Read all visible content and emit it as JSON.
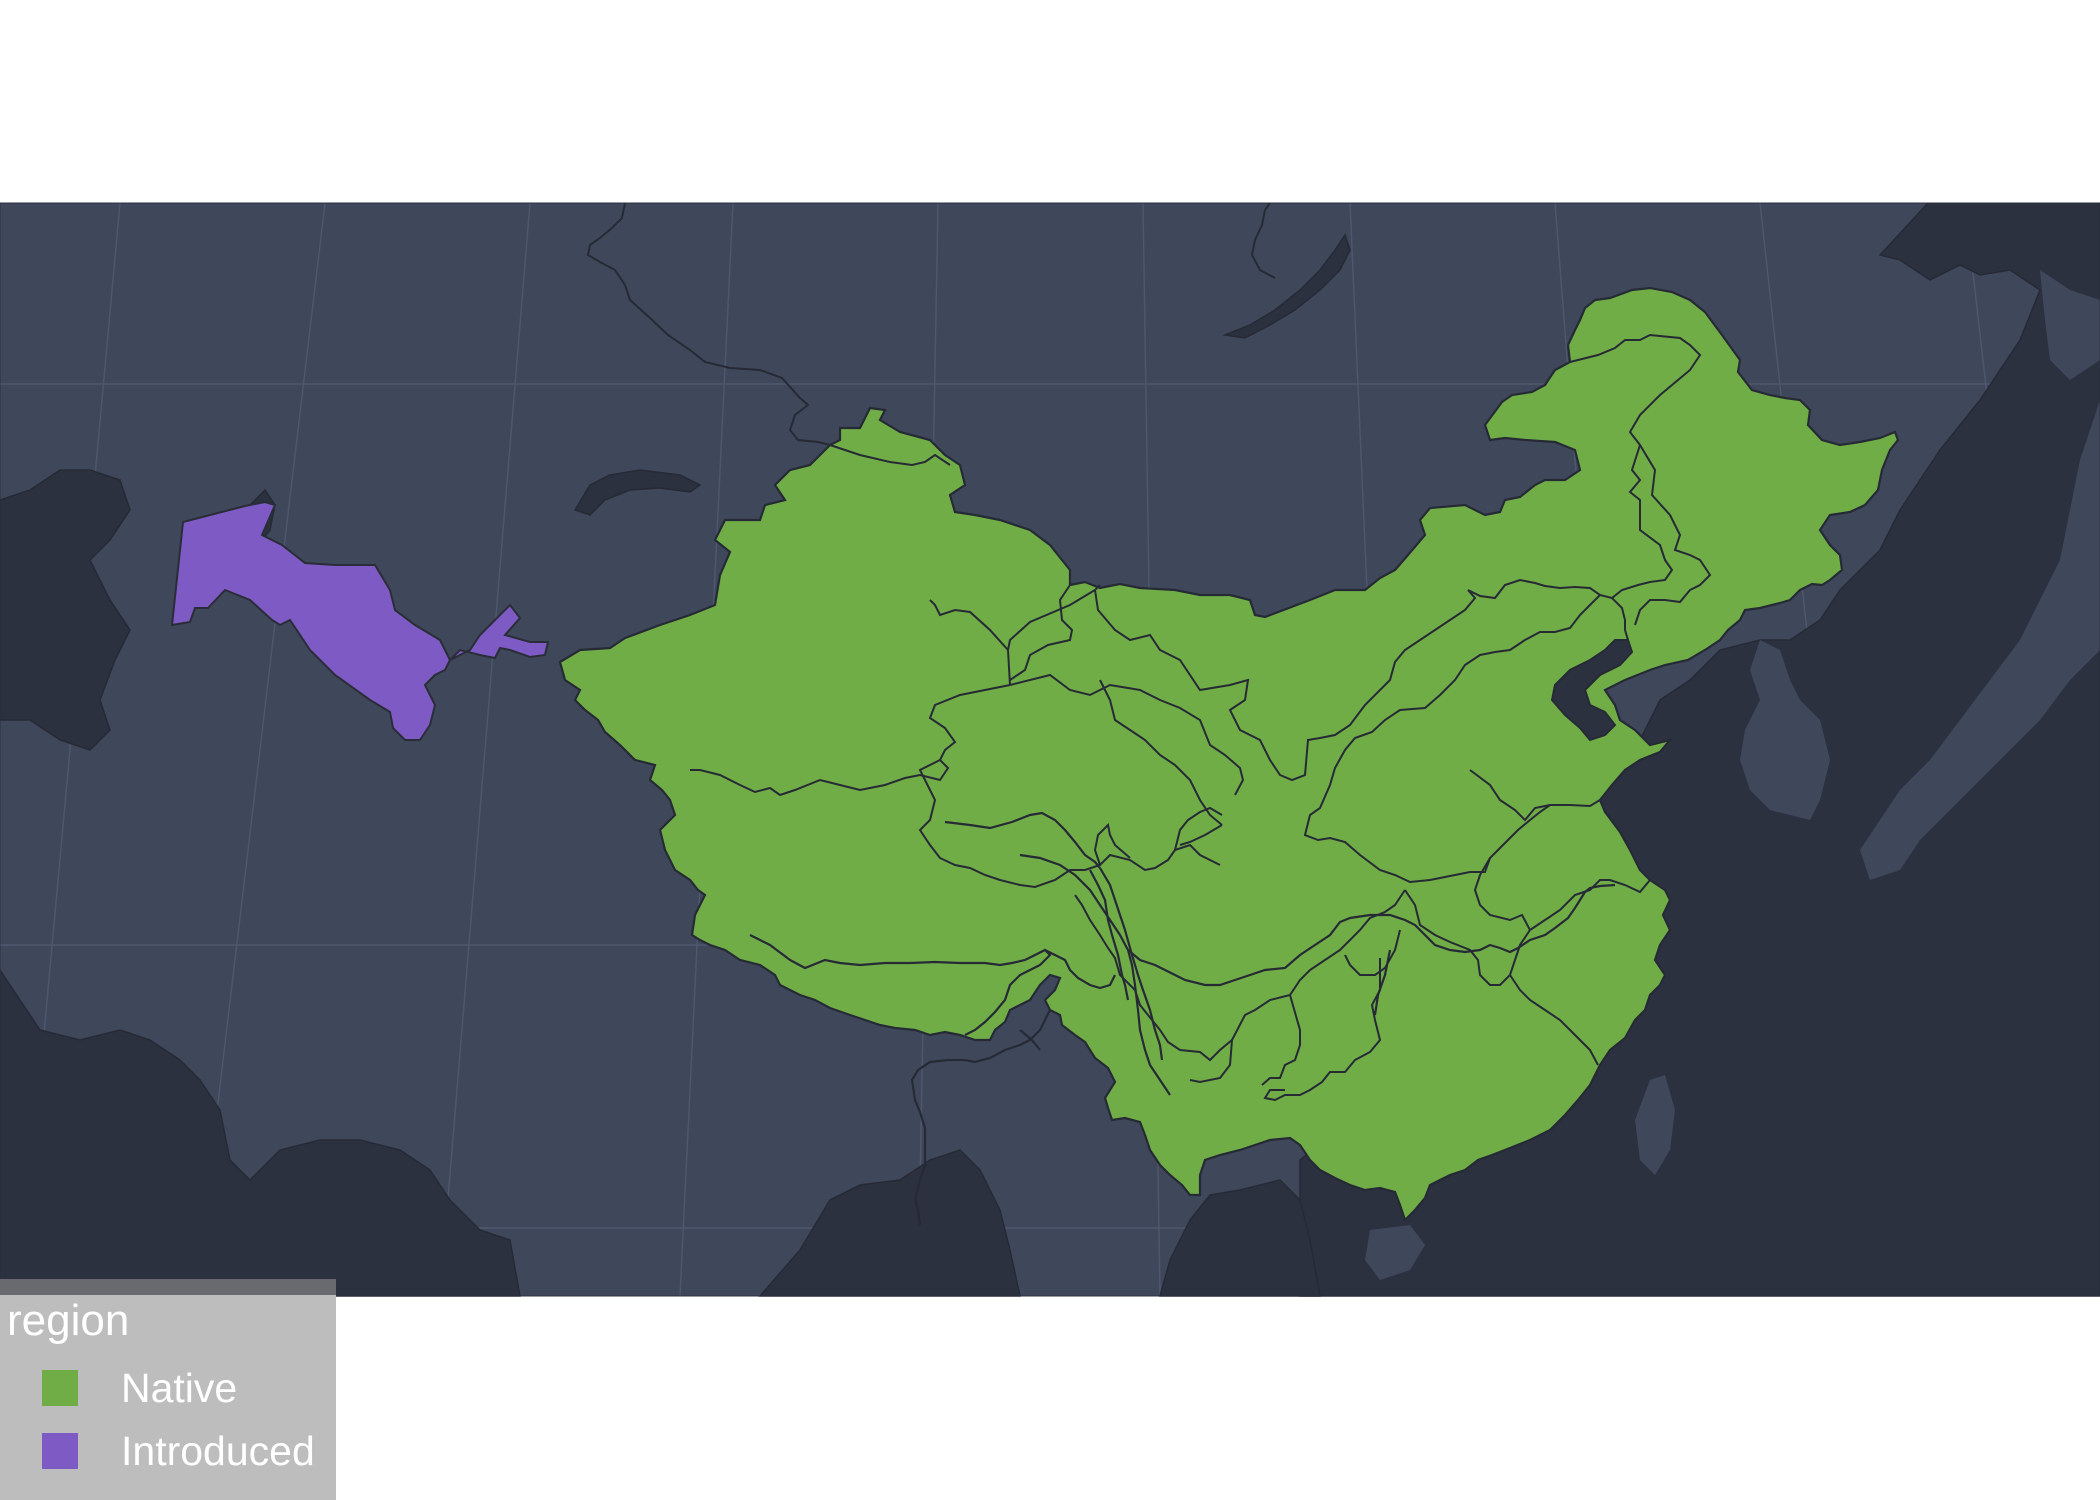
{
  "legend": {
    "title": "region",
    "items": [
      {
        "label": "Native",
        "color": "#70ad47"
      },
      {
        "label": "Introduced",
        "color": "#7e5bc4"
      }
    ]
  },
  "map": {
    "colors": {
      "sea": "#3f485b",
      "land": "#2c3140",
      "border": "#262a35",
      "graticule": "#59627a",
      "native": "#70ad47",
      "introduced": "#7e5bc4"
    },
    "regions": [
      {
        "name": "China",
        "status": "Native"
      },
      {
        "name": "Uzbekistan",
        "status": "Introduced"
      }
    ]
  }
}
